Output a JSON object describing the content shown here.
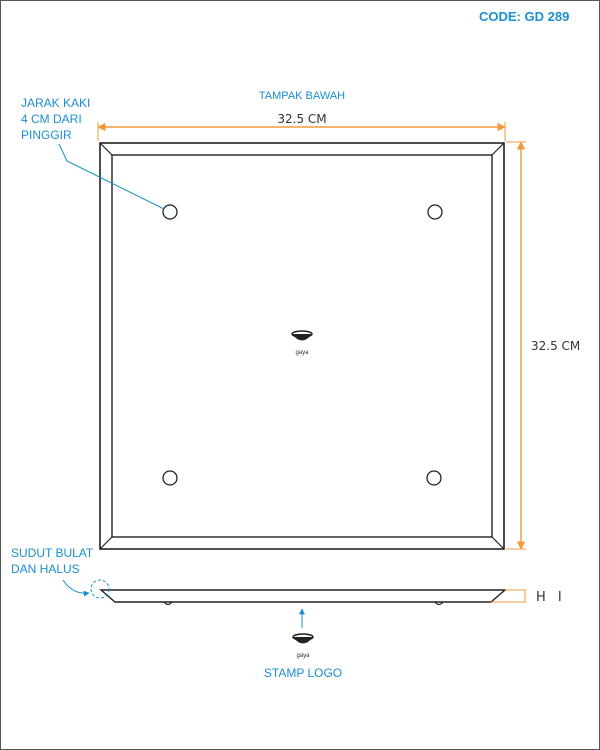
{
  "header": {
    "code": "CODE: GD 289"
  },
  "drawing": {
    "view_title": "TAMPAK BAWAH",
    "width_dimension": "32.5 CM",
    "height_dimension": "32.5 CM",
    "height_label": "H I"
  },
  "annotations": {
    "foot_distance": [
      "JARAK KAKI",
      "4 CM DARI",
      "PINGGIR"
    ],
    "rounded_corner": [
      "SUDUT BULAT",
      "DAN HALUS"
    ],
    "stamp_logo": "STAMP LOGO"
  },
  "logo": {
    "brand": "gaya"
  },
  "colors": {
    "annotation_blue": "#1a8fd0",
    "dimension_orange": "#f39a3c",
    "outline": "#222222"
  }
}
